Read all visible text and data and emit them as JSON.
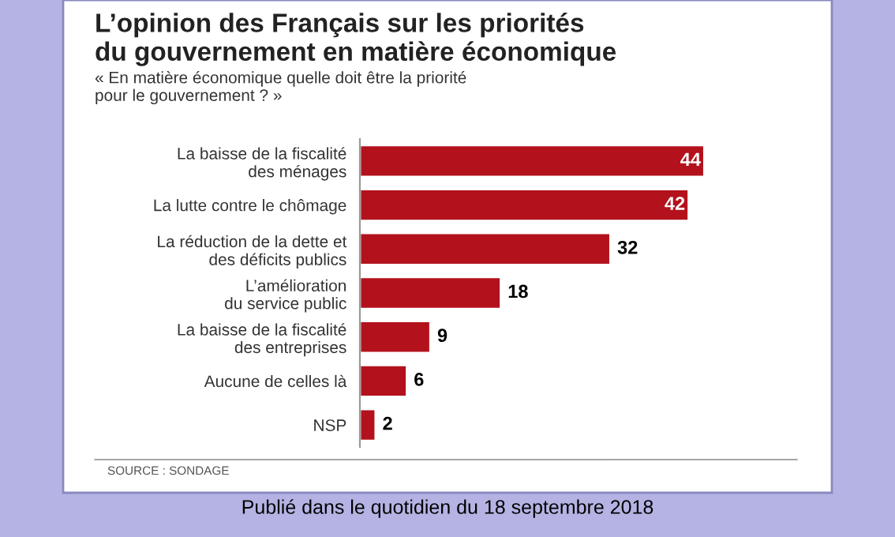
{
  "chart_data": {
    "type": "bar",
    "orientation": "horizontal",
    "title": "L’opinion des Français sur les priorités\ndu gouvernement en matière économique",
    "subtitle": "« En matière économique quelle doit être la priorité\npour le gouvernement ? »",
    "categories": [
      "La baisse de la fiscalité\ndes ménages",
      "La lutte contre le chômage",
      "La réduction de la dette et\ndes déficits publics",
      "L’amélioration\ndu service public",
      "La baisse de la fiscalité\ndes entreprises",
      "Aucune de celles là",
      "NSP"
    ],
    "values": [
      44,
      42,
      32,
      18,
      9,
      6,
      2
    ],
    "color": "#b3121c",
    "data_labels": true,
    "annotations": [
      "SOURCE : SONDAGE",
      "Publié dans le quotidien du 18 septembre 2018"
    ]
  }
}
